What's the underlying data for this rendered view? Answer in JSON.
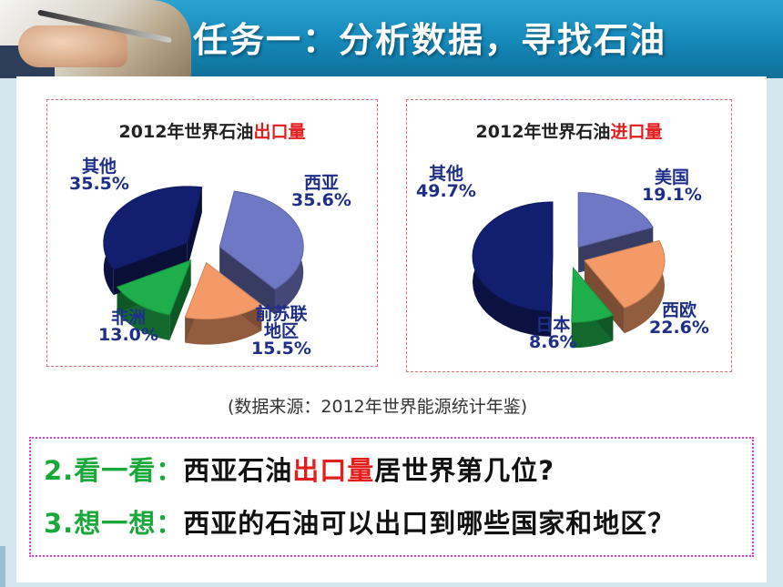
{
  "header": {
    "title": "任务一：分析数据，寻找石油"
  },
  "charts": [
    {
      "title_prefix": "2012年世界石油",
      "title_highlight": "出口量",
      "labels": [
        {
          "name": "西亚",
          "pct": "35.6%"
        },
        {
          "name": "前苏联地区",
          "name_line1": "前苏联",
          "name_line2": "地区",
          "pct": "15.5%"
        },
        {
          "name": "非洲",
          "pct": "13.0%"
        },
        {
          "name": "其他",
          "pct": "35.5%"
        }
      ]
    },
    {
      "title_prefix": "2012年世界石油",
      "title_highlight": "进口量",
      "labels": [
        {
          "name": "美国",
          "pct": "19.1%"
        },
        {
          "name": "西欧",
          "pct": "22.6%"
        },
        {
          "name": "日本",
          "pct": "8.6%"
        },
        {
          "name": "其他",
          "pct": "49.7%"
        }
      ]
    }
  ],
  "chart_data": [
    {
      "type": "pie",
      "title": "2012年世界石油出口量",
      "categories": [
        "西亚",
        "前苏联地区",
        "非洲",
        "其他"
      ],
      "values": [
        35.6,
        15.5,
        13.0,
        35.5
      ],
      "colors": [
        "#6f78c4",
        "#f39a68",
        "#1fae4c",
        "#121e6e"
      ]
    },
    {
      "type": "pie",
      "title": "2012年世界石油进口量",
      "categories": [
        "美国",
        "西欧",
        "日本",
        "其他"
      ],
      "values": [
        19.1,
        22.6,
        8.6,
        49.7
      ],
      "colors": [
        "#6f78c4",
        "#f39a68",
        "#1fae4c",
        "#121e6e"
      ]
    }
  ],
  "source": "(数据来源：2012年世界能源统计年鉴)",
  "questions": {
    "q1": {
      "num": "2.看一看：",
      "pre": "西亚石油",
      "highlight": "出口量",
      "post": "居世界第几位?"
    },
    "q2": {
      "num": "3.想一想：",
      "text": "西亚的石油可以出口到哪些国家和地区？"
    }
  }
}
